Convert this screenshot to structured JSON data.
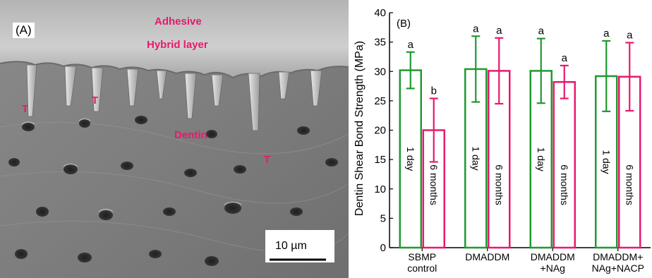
{
  "panel_a": {
    "panel_label": "(A)",
    "labels": {
      "adhesive": "Adhesive",
      "hybrid_layer": "Hybrid layer",
      "dentin": "Dentin",
      "tag_1": "T",
      "tag_2": "T",
      "tag_3": "T"
    },
    "scale_bar": "10 µm",
    "label_color": "#e8196e"
  },
  "chart_data": {
    "type": "bar",
    "panel_label": "(B)",
    "title": "",
    "xlabel": "",
    "ylabel": "Dentin Shear Bond Strength  (MPa)",
    "ylim": [
      0,
      40
    ],
    "yticks": [
      0,
      5,
      10,
      15,
      20,
      25,
      30,
      35,
      40
    ],
    "categories": [
      [
        "SBMP",
        "control"
      ],
      [
        "DMADDM"
      ],
      [
        "DMADDM",
        "+NAg"
      ],
      [
        "DMADDM+",
        "NAg+NACP"
      ]
    ],
    "series": [
      {
        "name": "1 day",
        "color": "#1f9a2f",
        "values": [
          30.2,
          30.4,
          30.1,
          29.2
        ],
        "errors": [
          3.1,
          5.6,
          5.5,
          6.0
        ],
        "letters": [
          "a",
          "a",
          "a",
          "a"
        ]
      },
      {
        "name": "6 months",
        "color": "#e8196e",
        "values": [
          20.0,
          30.1,
          28.2,
          29.1
        ],
        "errors": [
          5.4,
          5.6,
          2.8,
          5.8
        ],
        "letters": [
          "b",
          "a",
          "a",
          "a"
        ]
      }
    ],
    "grid": false,
    "legend": "none (labels inside bars)"
  }
}
